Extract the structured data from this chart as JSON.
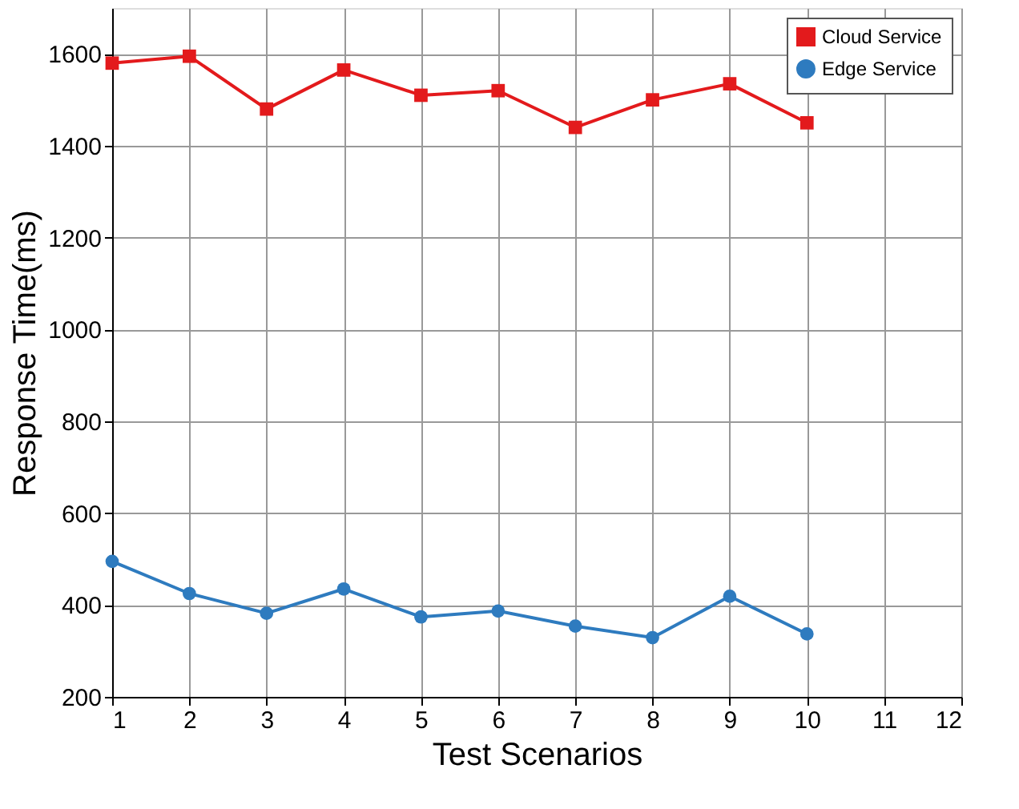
{
  "chart_data": {
    "type": "line",
    "xlabel": "Test Scenarios",
    "ylabel": "Response Time(ms)",
    "x": [
      1,
      2,
      3,
      4,
      5,
      6,
      7,
      8,
      9,
      10
    ],
    "series": [
      {
        "name": "Cloud Service",
        "color": "#e31a1c",
        "marker": "square",
        "values": [
          1580,
          1595,
          1480,
          1565,
          1510,
          1520,
          1440,
          1500,
          1535,
          1450
        ]
      },
      {
        "name": "Edge Service",
        "color": "#2e7bbf",
        "marker": "circle",
        "values": [
          495,
          425,
          382,
          435,
          374,
          387,
          354,
          329,
          419,
          337
        ]
      }
    ],
    "xlim": [
      1,
      12
    ],
    "xticks": [
      1,
      2,
      3,
      4,
      5,
      6,
      7,
      8,
      9,
      10,
      11,
      12
    ],
    "ylim": [
      200,
      1700
    ],
    "yticks": [
      200,
      400,
      600,
      800,
      1000,
      1200,
      1400,
      1600
    ],
    "grid": true,
    "legend": "top right",
    "line_style": "solid"
  }
}
